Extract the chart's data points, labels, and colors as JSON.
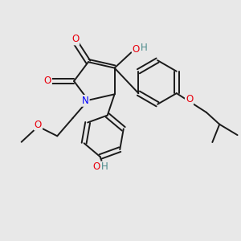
{
  "bg_color": "#e8e8e8",
  "bond_color": "#1a1a1a",
  "bond_width": 1.4,
  "atom_colors": {
    "O": "#e8000d",
    "N": "#0000ff",
    "H_teal": "#4a8a8a",
    "C": "#1a1a1a"
  },
  "font_size_atom": 8.5
}
